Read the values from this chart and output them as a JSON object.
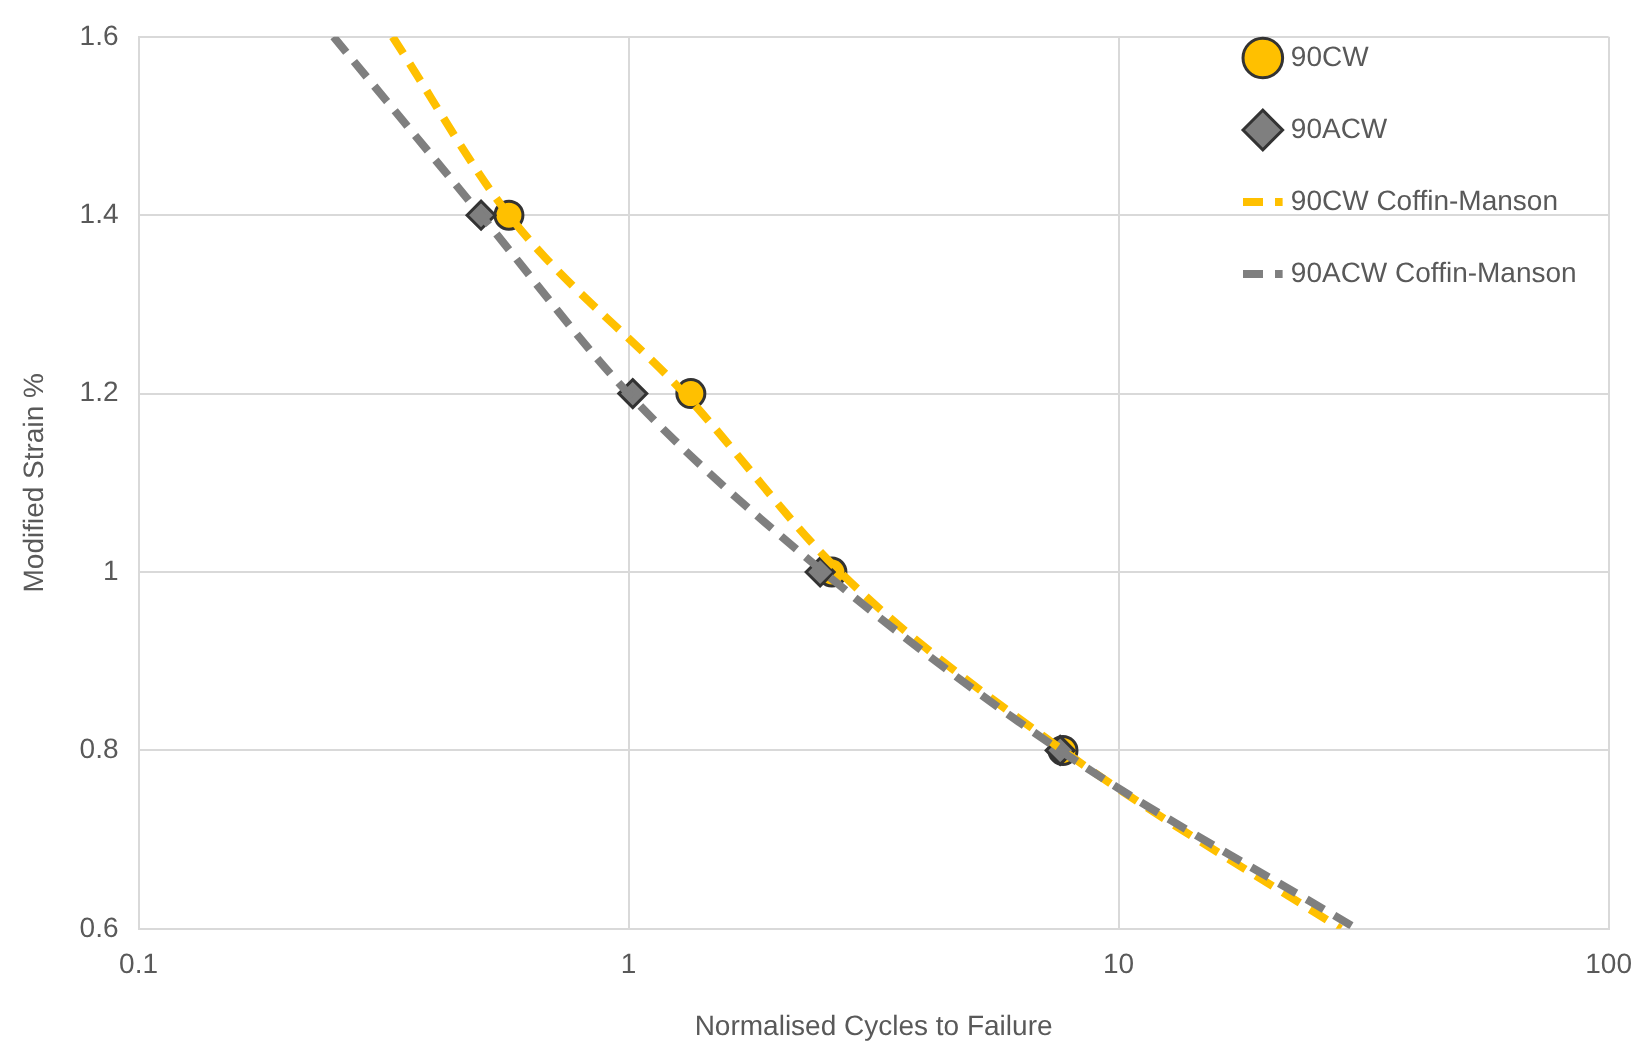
{
  "chart_data": {
    "type": "scatter",
    "xlabel": "Normalised Cycles to Failure",
    "ylabel": "Modified Strain %",
    "log": "x",
    "xlim": [
      0.1,
      100
    ],
    "xticks": [
      0.1,
      1,
      10,
      100
    ],
    "ylim": [
      0.6,
      1.6
    ],
    "yticks": [
      0.6,
      0.8,
      1,
      1.2,
      1.4,
      1.6
    ],
    "grid": true,
    "legend": "top right",
    "series": [
      {
        "name": "90CW",
        "marker": "circle",
        "color": "#ffc000",
        "x": [
          0.57,
          1.34,
          2.6,
          7.7
        ],
        "values": [
          1.4,
          1.2,
          1.0,
          0.8
        ]
      },
      {
        "name": "90ACW",
        "marker": "diamond",
        "color": "#7f7f7f",
        "x": [
          0.5,
          1.02,
          2.46,
          7.6
        ],
        "values": [
          1.4,
          1.2,
          1.0,
          0.8
        ]
      },
      {
        "name": "90CW Coffin-Manson",
        "type": "line",
        "marker": "none",
        "line_style": "dashed",
        "color": "#ffc000",
        "x": [
          0.33,
          0.57,
          1.3,
          2.7,
          7.7,
          28.4
        ],
        "values": [
          1.6,
          1.4,
          1.2,
          1.0,
          0.8,
          0.6
        ]
      },
      {
        "name": "90ACW Coffin-Manson",
        "type": "line",
        "marker": "none",
        "line_style": "dashed",
        "color": "#7f7f7f",
        "x": [
          0.25,
          0.5,
          1.0,
          2.5,
          7.6,
          30.6
        ],
        "values": [
          1.6,
          1.4,
          1.2,
          1.0,
          0.8,
          0.6
        ]
      }
    ]
  }
}
